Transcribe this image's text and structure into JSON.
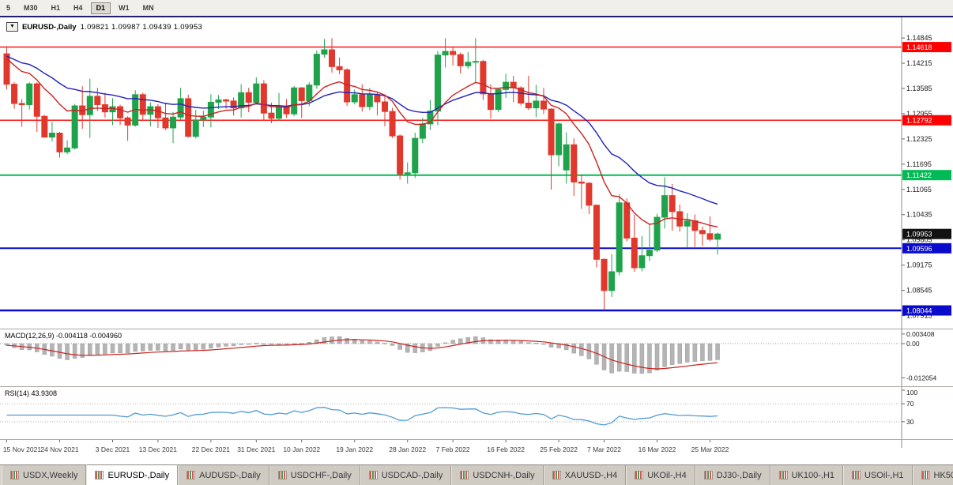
{
  "colors": {
    "up": "#1FA34A",
    "down": "#E0382C",
    "ma_fast": "#CC2222",
    "ma_slow": "#2222BB",
    "hline_red": "#FF0000",
    "hline_green": "#00BB55",
    "hline_blue": "#0A0ACD",
    "macd_hist": "#B4B4B4",
    "macd_signal": "#CC2222",
    "rsi_line": "#4F9BD5",
    "badge_current": "#121212",
    "axis_text": "#1a1a1a",
    "date_text": "#3c3c3c"
  },
  "toolbar": {
    "timeframes": [
      "5",
      "M30",
      "H1",
      "H4",
      "D1",
      "W1",
      "MN"
    ],
    "active": "D1"
  },
  "chart_title": {
    "dropdown_glyph": "▼",
    "symbol": "EURUSD-,Daily",
    "ohlc_text": "1.09821 1.09987 1.09439 1.09953"
  },
  "macd_panel": {
    "label": "MACD(12,26,9)",
    "values": "-0.004118 -0.004960"
  },
  "rsi_panel": {
    "label": "RSI(14)",
    "value": "43.9308"
  },
  "tabs": {
    "active_index": 1,
    "items": [
      "USDX,Weekly",
      "EURUSD-,Daily",
      "AUDUSD-,Daily",
      "USDCHF-,Daily",
      "USDCAD-,Daily",
      "USDCNH-,Daily",
      "XAUUSD-,H4",
      "UKOil-,H4",
      "DJ30-,Daily",
      "UK100-,H1",
      "USOil-,H1",
      "HK50-,H1"
    ]
  },
  "chart_data": {
    "type": "candlestick",
    "symbol": "EURUSD",
    "timeframe": "Daily",
    "title": "EURUSD-,Daily",
    "ohlc_display": {
      "open": "1.09821",
      "high": "1.09987",
      "low": "1.09439",
      "close": "1.09953"
    },
    "y_range": [
      1.0765,
      1.153
    ],
    "y_ticks": [
      "1.14845",
      "1.14215",
      "1.13585",
      "1.12955",
      "1.12325",
      "1.11695",
      "1.11065",
      "1.10435",
      "1.09805",
      "1.09175",
      "1.08545",
      "1.07915"
    ],
    "hlines": [
      {
        "value": 1.14618,
        "label": "1.14618",
        "color_key": "hline_red",
        "w": 1.4
      },
      {
        "value": 1.12792,
        "label": "1.12792",
        "color_key": "hline_red",
        "w": 1.4
      },
      {
        "value": 1.11422,
        "label": "1.11422",
        "color_key": "hline_green",
        "w": 2
      },
      {
        "value": 1.09596,
        "label": "1.09596",
        "color_key": "hline_blue",
        "w": 2
      },
      {
        "value": 1.08044,
        "label": "1.08044",
        "color_key": "hline_blue",
        "w": 2.5
      }
    ],
    "current": {
      "value": 1.09953,
      "label": "1.09953"
    },
    "overlays": [
      {
        "name": "ma-fast",
        "period": 12,
        "color_key": "ma_fast"
      },
      {
        "name": "ma-slow",
        "period": 26,
        "color_key": "ma_slow"
      }
    ],
    "x_labels": [
      {
        "i": 0,
        "text": "15 Nov 2021"
      },
      {
        "i": 7,
        "text": "24 Nov 2021"
      },
      {
        "i": 14,
        "text": "3 Dec 2021"
      },
      {
        "i": 20,
        "text": "13 Dec 2021"
      },
      {
        "i": 27,
        "text": "22 Dec 2021"
      },
      {
        "i": 33,
        "text": "31 Dec 2021"
      },
      {
        "i": 39,
        "text": "10 Jan 2022"
      },
      {
        "i": 46,
        "text": "19 Jan 2022"
      },
      {
        "i": 53,
        "text": "28 Jan 2022"
      },
      {
        "i": 59,
        "text": "7 Feb 2022"
      },
      {
        "i": 66,
        "text": "16 Feb 2022"
      },
      {
        "i": 73,
        "text": "25 Feb 2022"
      },
      {
        "i": 79,
        "text": "7 Mar 2022"
      },
      {
        "i": 86,
        "text": "16 Mar 2022"
      },
      {
        "i": 93,
        "text": "25 Mar 2022"
      }
    ],
    "ohlc": [
      [
        1.1445,
        1.1464,
        1.1356,
        1.1369
      ],
      [
        1.1369,
        1.1374,
        1.1308,
        1.1321
      ],
      [
        1.1321,
        1.1332,
        1.1263,
        1.1318
      ],
      [
        1.1318,
        1.1374,
        1.1306,
        1.137
      ],
      [
        1.137,
        1.1374,
        1.125,
        1.1289
      ],
      [
        1.1289,
        1.1292,
        1.1236,
        1.1237
      ],
      [
        1.1237,
        1.1275,
        1.1226,
        1.1247
      ],
      [
        1.1247,
        1.125,
        1.1186,
        1.12
      ],
      [
        1.12,
        1.1229,
        1.1194,
        1.121
      ],
      [
        1.121,
        1.132,
        1.1206,
        1.1315
      ],
      [
        1.1315,
        1.1364,
        1.1258,
        1.1293
      ],
      [
        1.1293,
        1.1383,
        1.1235,
        1.1339
      ],
      [
        1.1339,
        1.136,
        1.1302,
        1.1318
      ],
      [
        1.1318,
        1.1348,
        1.1286,
        1.13
      ],
      [
        1.13,
        1.1334,
        1.1267,
        1.1313
      ],
      [
        1.1313,
        1.1318,
        1.1268,
        1.1285
      ],
      [
        1.1285,
        1.1289,
        1.1228,
        1.1267
      ],
      [
        1.1267,
        1.1354,
        1.1263,
        1.1343
      ],
      [
        1.1343,
        1.1348,
        1.128,
        1.1294
      ],
      [
        1.1294,
        1.1324,
        1.1264,
        1.1313
      ],
      [
        1.1313,
        1.1319,
        1.126,
        1.1285
      ],
      [
        1.1285,
        1.1323,
        1.1255,
        1.126
      ],
      [
        1.126,
        1.13,
        1.1222,
        1.1287
      ],
      [
        1.1287,
        1.136,
        1.1281,
        1.1333
      ],
      [
        1.1333,
        1.1343,
        1.1236,
        1.1239
      ],
      [
        1.1239,
        1.1305,
        1.1234,
        1.128
      ],
      [
        1.128,
        1.1303,
        1.1262,
        1.1287
      ],
      [
        1.1287,
        1.1344,
        1.1261,
        1.1324
      ],
      [
        1.1324,
        1.1342,
        1.1307,
        1.133
      ],
      [
        1.133,
        1.1333,
        1.1308,
        1.1327
      ],
      [
        1.1327,
        1.1336,
        1.1291,
        1.131
      ],
      [
        1.131,
        1.1369,
        1.1286,
        1.1348
      ],
      [
        1.1348,
        1.136,
        1.1299,
        1.1324
      ],
      [
        1.1324,
        1.1386,
        1.1321,
        1.137
      ],
      [
        1.137,
        1.1379,
        1.1279,
        1.1297
      ],
      [
        1.1297,
        1.1323,
        1.1272,
        1.1284
      ],
      [
        1.1284,
        1.1347,
        1.1279,
        1.1313
      ],
      [
        1.1313,
        1.1332,
        1.1285,
        1.1295
      ],
      [
        1.1295,
        1.1365,
        1.1289,
        1.136
      ],
      [
        1.136,
        1.1362,
        1.1285,
        1.1328
      ],
      [
        1.1328,
        1.1374,
        1.1314,
        1.1367
      ],
      [
        1.1367,
        1.1453,
        1.1358,
        1.1444
      ],
      [
        1.1444,
        1.1482,
        1.1435,
        1.1455
      ],
      [
        1.1455,
        1.1484,
        1.1398,
        1.1413
      ],
      [
        1.1413,
        1.1436,
        1.1394,
        1.1405
      ],
      [
        1.1405,
        1.1409,
        1.1315,
        1.1325
      ],
      [
        1.1325,
        1.1356,
        1.1319,
        1.1343
      ],
      [
        1.1343,
        1.1369,
        1.1301,
        1.1313
      ],
      [
        1.1313,
        1.136,
        1.1304,
        1.1343
      ],
      [
        1.1343,
        1.135,
        1.1291,
        1.1325
      ],
      [
        1.1325,
        1.1339,
        1.1264,
        1.1301
      ],
      [
        1.1301,
        1.131,
        1.1235,
        1.124
      ],
      [
        1.124,
        1.1244,
        1.1131,
        1.1145
      ],
      [
        1.1145,
        1.1174,
        1.1121,
        1.1148
      ],
      [
        1.1148,
        1.1248,
        1.1135,
        1.1234
      ],
      [
        1.1234,
        1.1285,
        1.1222,
        1.127
      ],
      [
        1.127,
        1.133,
        1.1255,
        1.1302
      ],
      [
        1.1302,
        1.1452,
        1.1267,
        1.1442
      ],
      [
        1.1442,
        1.1484,
        1.1411,
        1.1451
      ],
      [
        1.1451,
        1.1463,
        1.1416,
        1.1443
      ],
      [
        1.1443,
        1.1448,
        1.1396,
        1.1415
      ],
      [
        1.1415,
        1.1449,
        1.1408,
        1.1424
      ],
      [
        1.1424,
        1.1484,
        1.1374,
        1.1426
      ],
      [
        1.1426,
        1.143,
        1.133,
        1.1345
      ],
      [
        1.1345,
        1.1369,
        1.1283,
        1.1306
      ],
      [
        1.1306,
        1.136,
        1.1299,
        1.1356
      ],
      [
        1.1356,
        1.1395,
        1.1335,
        1.1374
      ],
      [
        1.1374,
        1.139,
        1.1324,
        1.136
      ],
      [
        1.136,
        1.1364,
        1.1316,
        1.1322
      ],
      [
        1.1322,
        1.139,
        1.1305,
        1.131
      ],
      [
        1.131,
        1.1368,
        1.1287,
        1.1327
      ],
      [
        1.1327,
        1.136,
        1.1295,
        1.1307
      ],
      [
        1.1307,
        1.1309,
        1.1106,
        1.1193
      ],
      [
        1.1193,
        1.1274,
        1.1164,
        1.127
      ],
      [
        1.1155,
        1.1249,
        1.1121,
        1.1218
      ],
      [
        1.1218,
        1.1234,
        1.109,
        1.1125
      ],
      [
        1.1125,
        1.1144,
        1.1058,
        1.1122
      ],
      [
        1.1122,
        1.1125,
        1.1045,
        1.1067
      ],
      [
        1.1067,
        1.1069,
        1.0912,
        1.0932
      ],
      [
        1.0932,
        1.0934,
        1.0806,
        1.0854
      ],
      [
        1.0854,
        1.0945,
        1.0838,
        1.0901
      ],
      [
        1.0901,
        1.1095,
        1.0892,
        1.1073
      ],
      [
        1.1073,
        1.1084,
        1.0977,
        1.0985
      ],
      [
        1.0985,
        1.1043,
        1.0901,
        1.0911
      ],
      [
        1.0911,
        1.099,
        1.0902,
        1.0941
      ],
      [
        1.0941,
        1.102,
        1.0928,
        1.0955
      ],
      [
        1.0955,
        1.1046,
        1.095,
        1.1037
      ],
      [
        1.1037,
        1.1137,
        1.1009,
        1.1091
      ],
      [
        1.1091,
        1.112,
        1.1003,
        1.1051
      ],
      [
        1.1051,
        1.1069,
        1.1001,
        1.1015
      ],
      [
        1.1015,
        1.1047,
        1.0961,
        1.1028
      ],
      [
        1.1028,
        1.1044,
        1.0963,
        1.1004
      ],
      [
        1.1004,
        1.1014,
        1.0965,
        1.0996
      ],
      [
        1.0996,
        1.1039,
        1.0977,
        1.0982
      ],
      [
        1.09821,
        1.09987,
        1.09439,
        1.09953
      ]
    ],
    "macd": {
      "fast": 12,
      "slow": 26,
      "signal": 9,
      "range": [
        -0.0131,
        0.0042
      ],
      "y_ticks": [
        {
          "v": 0.003408,
          "text": "0.003408"
        },
        {
          "v": 0,
          "text": "0.00"
        },
        {
          "v": -0.012054,
          "text": "-0.012054"
        }
      ]
    },
    "rsi": {
      "period": 14,
      "range": [
        0,
        100
      ],
      "levels": [
        70,
        30
      ],
      "y_ticks": [
        {
          "v": 100,
          "text": "100"
        },
        {
          "v": 70,
          "text": "70"
        },
        {
          "v": 30,
          "text": "30"
        }
      ]
    }
  }
}
